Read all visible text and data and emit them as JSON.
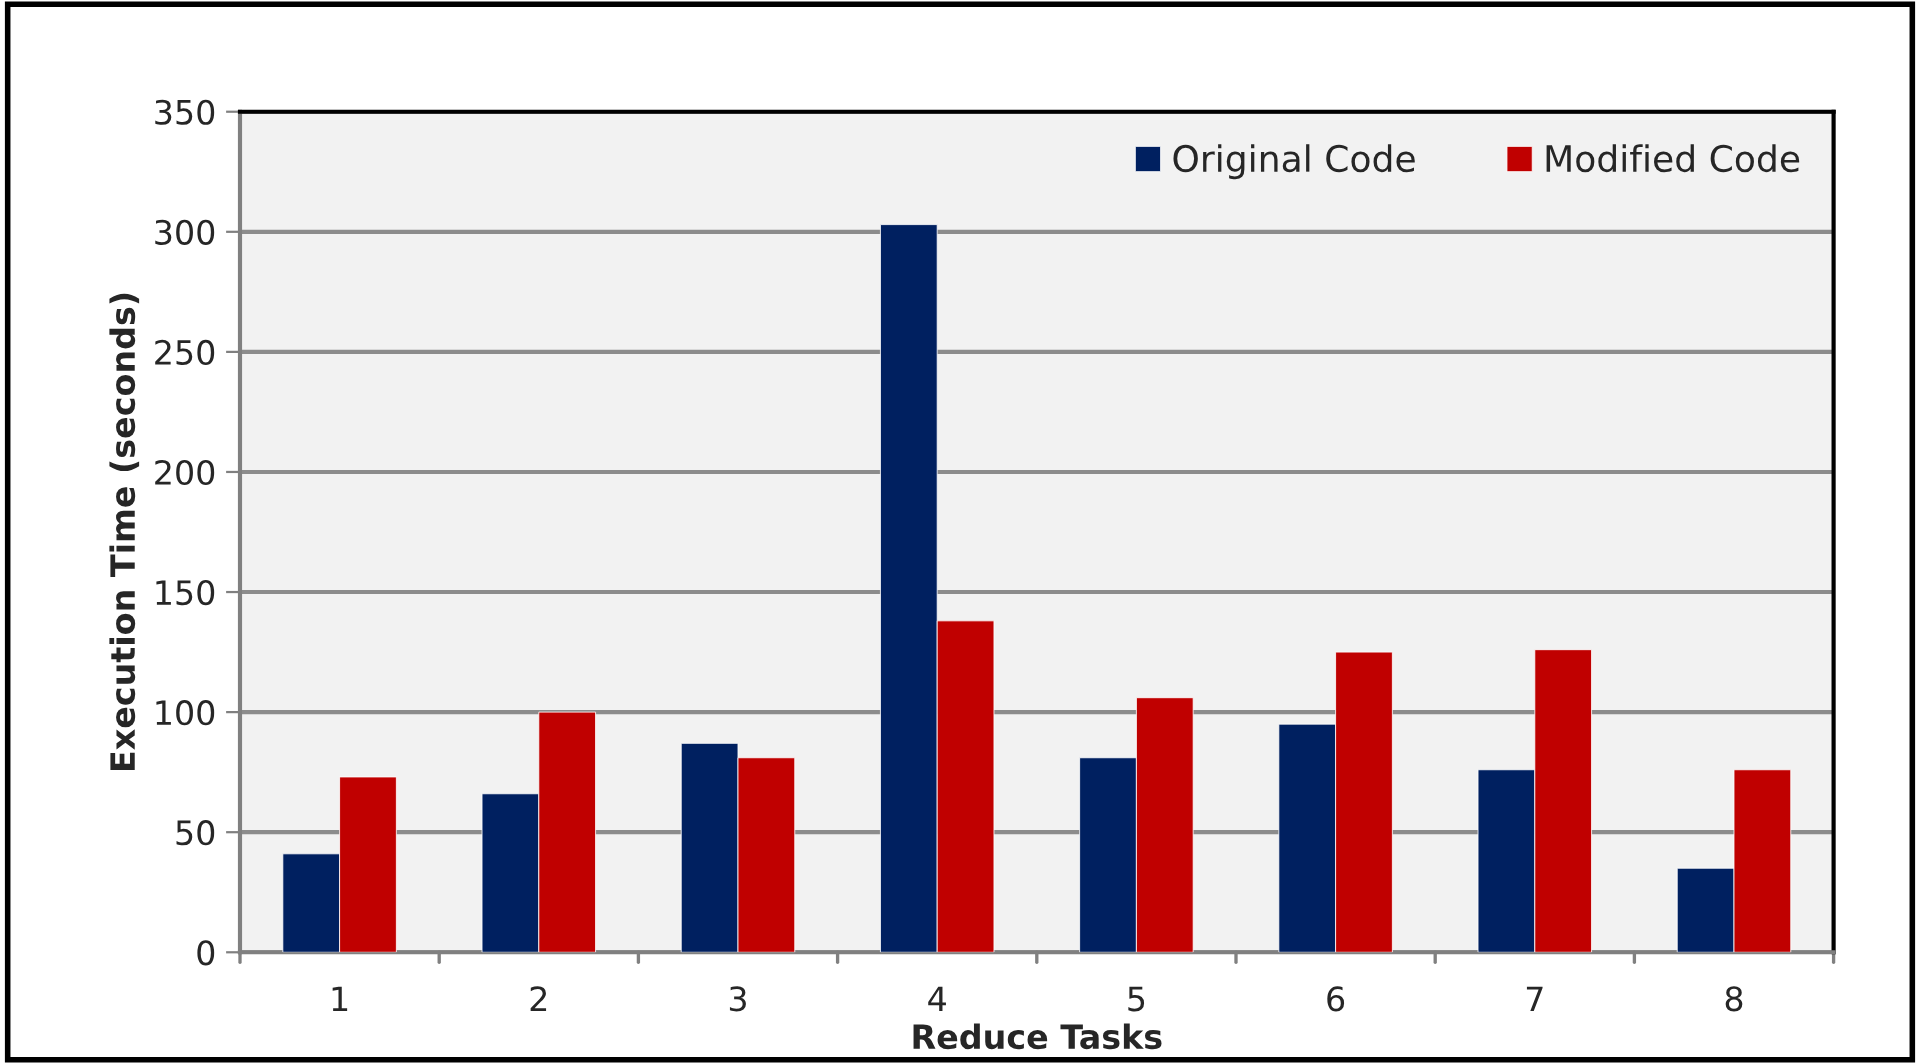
{
  "chart_data": {
    "type": "bar",
    "xlabel": "Reduce Tasks",
    "ylabel": "Execution Time (seconds)",
    "categories": [
      "1",
      "2",
      "3",
      "4",
      "5",
      "6",
      "7",
      "8"
    ],
    "series": [
      {
        "name": "Original Code",
        "color": "#002060",
        "values": [
          41,
          66,
          87,
          303,
          81,
          95,
          76,
          35
        ]
      },
      {
        "name": "Modified Code",
        "color": "#c00000",
        "values": [
          73,
          100,
          81,
          138,
          106,
          125,
          126,
          76
        ]
      }
    ],
    "ylim": [
      0,
      350
    ],
    "yticks": [
      0,
      50,
      100,
      150,
      200,
      250,
      300,
      350
    ],
    "grid": "y",
    "legend": "top right"
  }
}
